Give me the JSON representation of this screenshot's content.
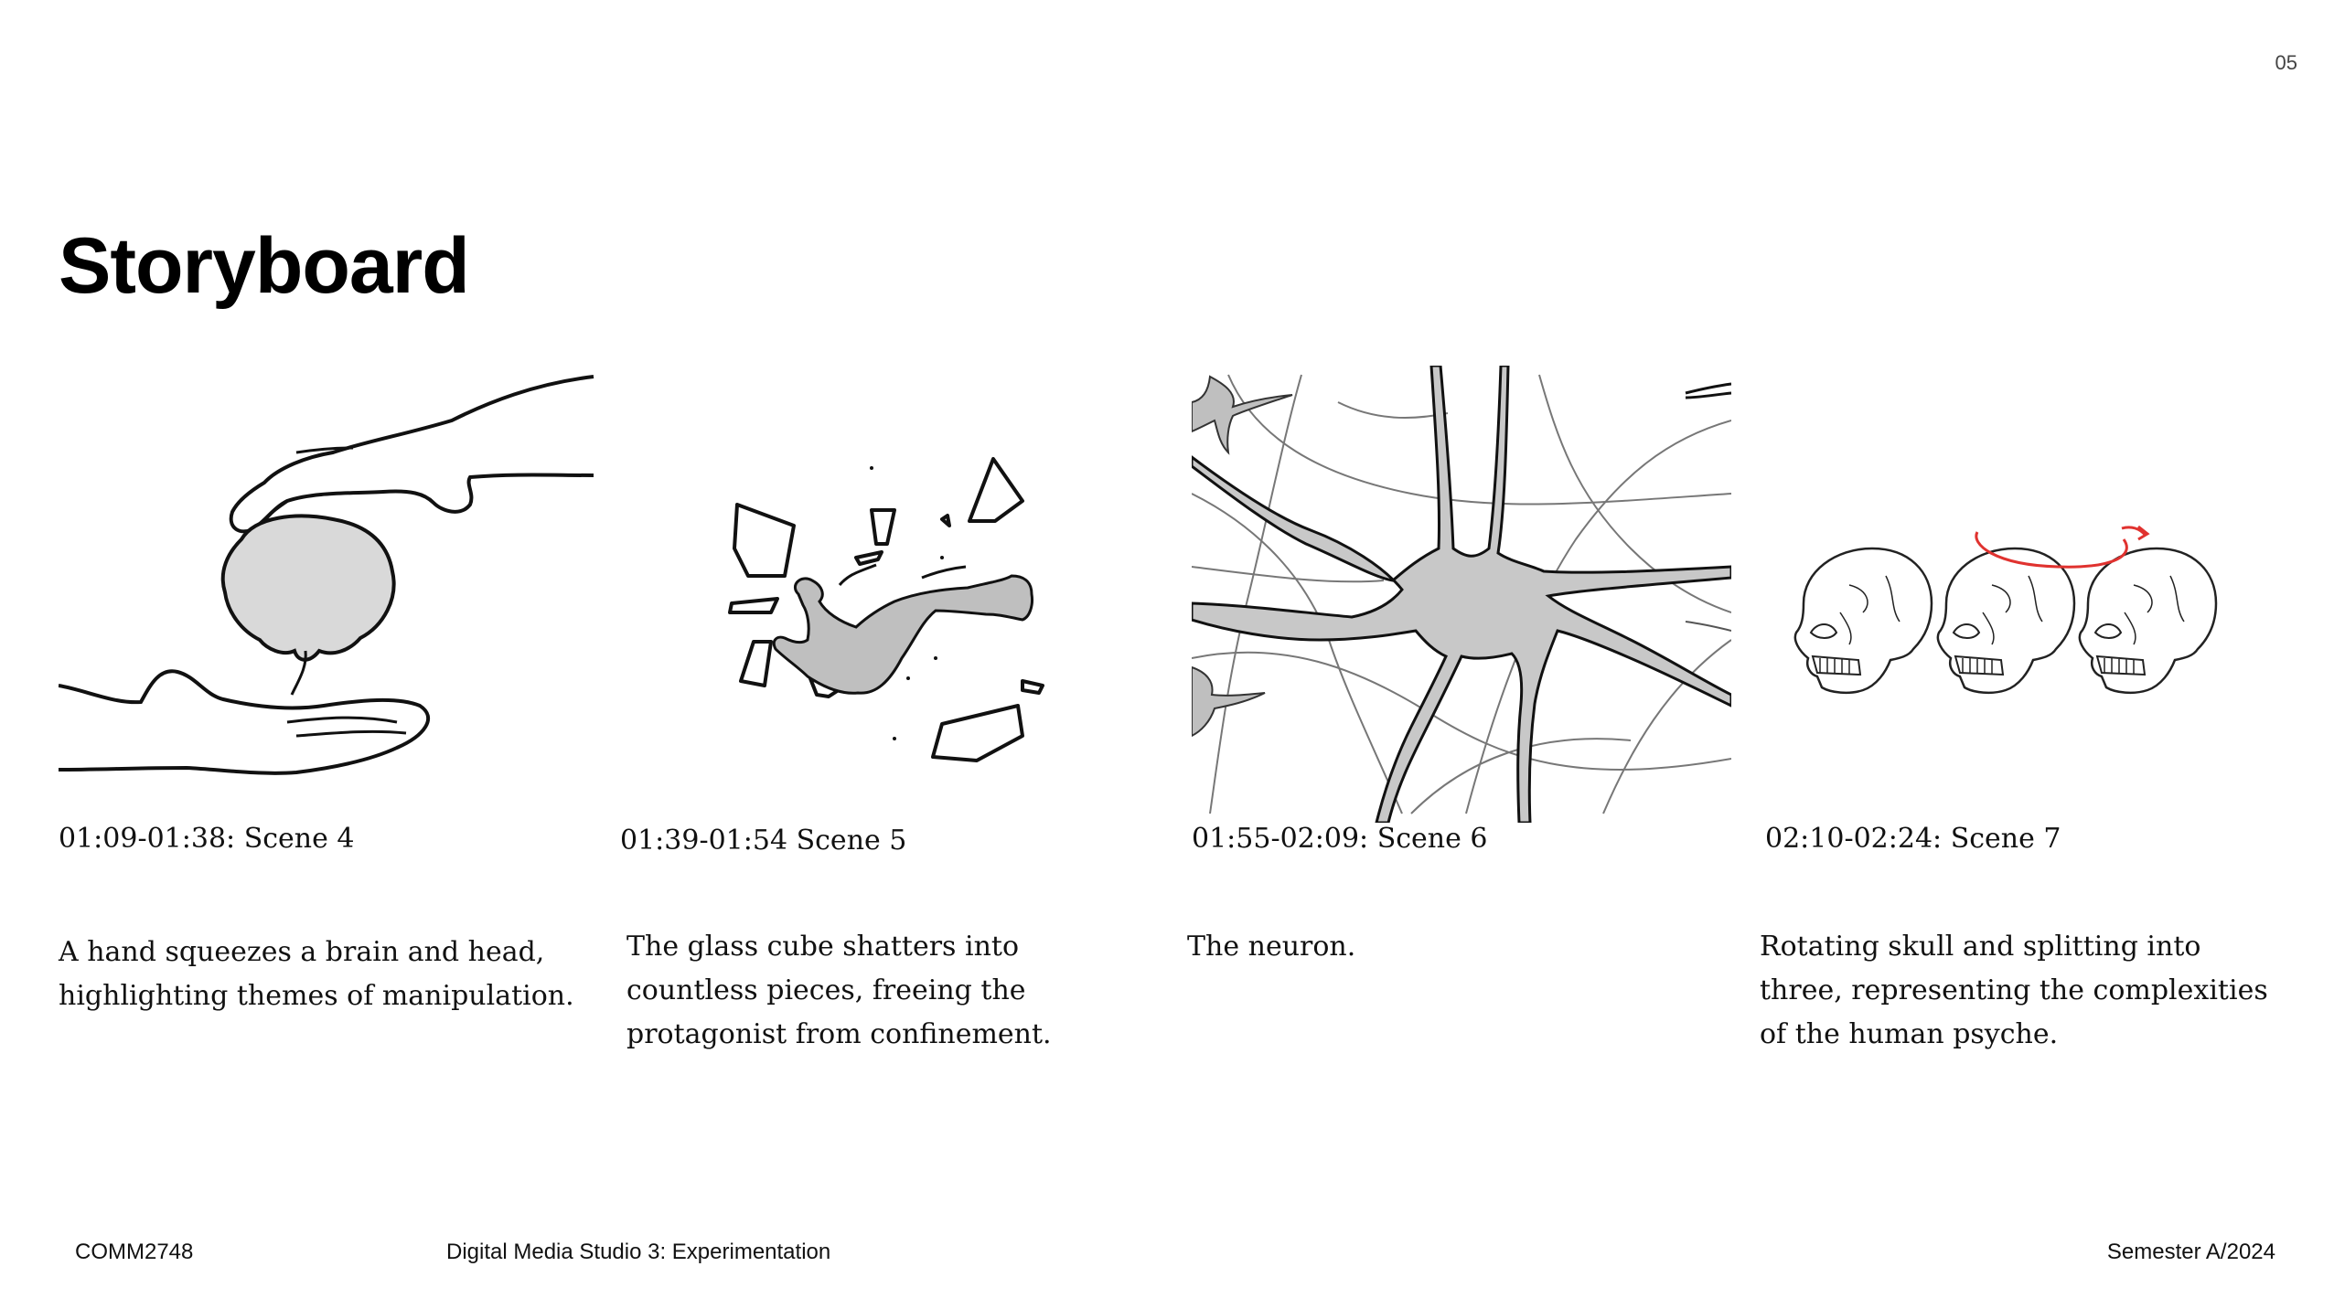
{
  "slide": {
    "page_number": "05",
    "title": "Storyboard"
  },
  "scenes": [
    {
      "timecode": "01:09-01:38: Scene 4",
      "description": "A hand squeezes a brain and head, highlighting themes of manipulation.",
      "image_icon": "hand-squeezing-brain-illustration"
    },
    {
      "timecode": "01:39-01:54 Scene 5",
      "description": "The glass cube shatters into countless pieces, freeing the protagonist from confinement.",
      "image_icon": "shattering-glass-figure-illustration"
    },
    {
      "timecode": "01:55-02:09: Scene 6",
      "description": "The neuron.",
      "image_icon": "neuron-illustration"
    },
    {
      "timecode": "02:10-02:24: Scene 7",
      "description": "Rotating skull and splitting into three, representing the complexities of the human psyche.",
      "image_icon": "three-skulls-rotation-illustration"
    }
  ],
  "footer": {
    "course_code": "COMM2748",
    "course_name": "Digital Media Studio 3: Experimentation",
    "semester": "Semester A/2024"
  },
  "colors": {
    "ink": "#111111",
    "fill_gray": "#cccccc",
    "accent_red": "#e0322f"
  }
}
